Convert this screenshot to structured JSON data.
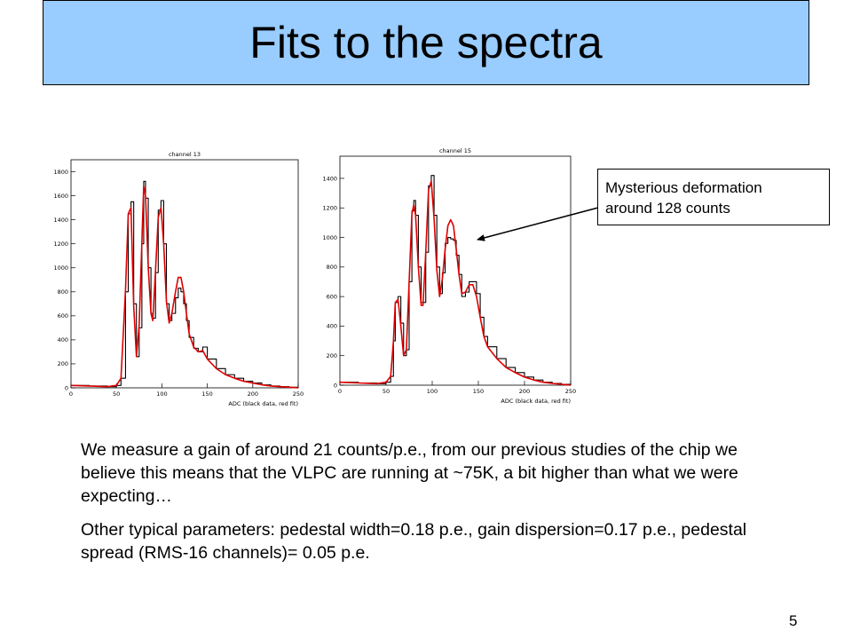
{
  "slide": {
    "title": "Fits to the spectra",
    "page_number": "5"
  },
  "callout": {
    "line1": "Mysterious deformation",
    "line2": "around 128 counts"
  },
  "paragraphs": [
    "We measure a gain of around 21 counts/p.e., from our previous studies of the chip we believe this means that the VLPC are running at ~75K, a bit higher than what we were expecting…",
    "Other typical parameters: pedestal width=0.18 p.e., gain dispersion=0.17 p.e., pedestal spread (RMS-16 channels)= 0.05 p.e."
  ],
  "colors": {
    "title_bg": "#99ccff",
    "data": "#000000",
    "fit": "#e00000"
  },
  "chart_data": [
    {
      "type": "line",
      "title": "channel 13",
      "xlabel": "ADC (black data, red fit)",
      "ylabel": "",
      "xlim": [
        0,
        250
      ],
      "ylim": [
        0,
        1900
      ],
      "xticks": [
        0,
        50,
        100,
        150,
        200,
        250
      ],
      "yticks": [
        0,
        200,
        400,
        600,
        800,
        1000,
        1200,
        1400,
        1600,
        1800
      ],
      "series": [
        {
          "role": "data",
          "x": [
            0,
            20,
            40,
            50,
            55,
            60,
            63,
            66,
            69,
            72,
            75,
            78,
            80,
            82,
            85,
            88,
            90,
            93,
            96,
            99,
            102,
            105,
            108,
            111,
            115,
            118,
            121,
            124,
            127,
            130,
            135,
            140,
            145,
            150,
            160,
            170,
            180,
            190,
            200,
            210,
            220,
            230,
            240,
            250
          ],
          "values": [
            20,
            15,
            10,
            20,
            80,
            800,
            1450,
            1550,
            700,
            260,
            500,
            1200,
            1720,
            1580,
            1000,
            620,
            580,
            960,
            1480,
            1560,
            1200,
            700,
            560,
            620,
            750,
            830,
            800,
            700,
            560,
            420,
            330,
            300,
            340,
            240,
            160,
            110,
            80,
            55,
            40,
            25,
            15,
            10,
            5,
            0
          ]
        },
        {
          "role": "fit",
          "x": [
            0,
            20,
            40,
            50,
            55,
            60,
            63,
            66,
            69,
            72,
            75,
            78,
            80,
            82,
            85,
            88,
            90,
            93,
            96,
            99,
            102,
            105,
            108,
            111,
            115,
            118,
            121,
            124,
            127,
            130,
            135,
            140,
            145,
            150,
            160,
            170,
            180,
            190,
            200,
            210,
            220,
            230,
            240,
            250
          ],
          "values": [
            20,
            15,
            10,
            20,
            80,
            820,
            1450,
            1500,
            680,
            260,
            520,
            1220,
            1680,
            1600,
            1000,
            620,
            560,
            980,
            1420,
            1500,
            1200,
            720,
            540,
            620,
            800,
            920,
            920,
            800,
            620,
            450,
            340,
            300,
            310,
            240,
            160,
            110,
            80,
            55,
            40,
            25,
            15,
            10,
            5,
            0
          ]
        }
      ]
    },
    {
      "type": "line",
      "title": "channel 15",
      "xlabel": "ADC (black data, red fit)",
      "ylabel": "",
      "xlim": [
        0,
        250
      ],
      "ylim": [
        0,
        1550
      ],
      "xticks": [
        0,
        50,
        100,
        150,
        200,
        250
      ],
      "yticks": [
        0,
        200,
        400,
        600,
        800,
        1000,
        1200,
        1400
      ],
      "series": [
        {
          "role": "data",
          "x": [
            0,
            20,
            40,
            50,
            55,
            58,
            60,
            63,
            66,
            69,
            72,
            75,
            78,
            80,
            82,
            85,
            88,
            90,
            93,
            96,
            99,
            102,
            105,
            108,
            111,
            114,
            117,
            120,
            123,
            126,
            129,
            132,
            136,
            140,
            144,
            148,
            152,
            156,
            160,
            170,
            180,
            190,
            200,
            210,
            220,
            230,
            240,
            250
          ],
          "values": [
            20,
            15,
            10,
            20,
            60,
            300,
            560,
            600,
            420,
            200,
            240,
            700,
            1180,
            1250,
            1150,
            800,
            560,
            560,
            900,
            1350,
            1420,
            1150,
            800,
            620,
            760,
            960,
            1000,
            990,
            980,
            880,
            750,
            600,
            630,
            700,
            700,
            620,
            460,
            330,
            260,
            180,
            120,
            85,
            55,
            35,
            20,
            12,
            6,
            0
          ]
        },
        {
          "role": "fit",
          "x": [
            0,
            20,
            40,
            50,
            55,
            58,
            60,
            63,
            66,
            69,
            72,
            75,
            78,
            80,
            82,
            85,
            88,
            90,
            93,
            96,
            99,
            102,
            105,
            108,
            111,
            114,
            117,
            120,
            123,
            126,
            129,
            132,
            136,
            140,
            144,
            148,
            152,
            156,
            160,
            170,
            180,
            190,
            200,
            210,
            220,
            230,
            240,
            250
          ],
          "values": [
            20,
            15,
            10,
            20,
            60,
            300,
            560,
            580,
            400,
            200,
            240,
            700,
            1160,
            1220,
            1150,
            800,
            540,
            540,
            900,
            1320,
            1380,
            1130,
            780,
            600,
            720,
            920,
            1080,
            1120,
            1080,
            920,
            750,
            620,
            630,
            680,
            680,
            600,
            460,
            330,
            260,
            180,
            120,
            85,
            55,
            35,
            20,
            12,
            6,
            0
          ]
        }
      ]
    }
  ]
}
